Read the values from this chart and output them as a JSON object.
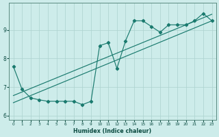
{
  "xlabel": "Humidex (Indice chaleur)",
  "bg_color": "#cdecea",
  "grid_color": "#aed4d1",
  "line_color": "#1a7a6e",
  "xlim": [
    -0.5,
    23.5
  ],
  "ylim": [
    5.85,
    9.95
  ],
  "yticks": [
    6,
    7,
    8,
    9
  ],
  "xticks": [
    0,
    1,
    2,
    3,
    4,
    5,
    6,
    7,
    8,
    9,
    10,
    11,
    12,
    13,
    14,
    15,
    16,
    17,
    18,
    19,
    20,
    21,
    22,
    23
  ],
  "data_x": [
    0,
    1,
    2,
    3,
    4,
    5,
    6,
    7,
    8,
    9,
    10,
    11,
    12,
    13,
    14,
    15,
    16,
    17,
    18,
    19,
    20,
    21,
    22,
    23
  ],
  "data_y": [
    7.72,
    6.92,
    6.62,
    6.55,
    6.5,
    6.5,
    6.5,
    6.5,
    6.38,
    6.5,
    8.45,
    8.55,
    7.65,
    8.62,
    9.32,
    9.32,
    9.12,
    8.92,
    9.18,
    9.18,
    9.18,
    9.32,
    9.58,
    9.32
  ],
  "trend1_x0": 0,
  "trend1_y0": 6.7,
  "trend1_x1": 23,
  "trend1_y1": 9.55,
  "trend2_x0": 0,
  "trend2_y0": 6.45,
  "trend2_x1": 23,
  "trend2_y1": 9.32
}
